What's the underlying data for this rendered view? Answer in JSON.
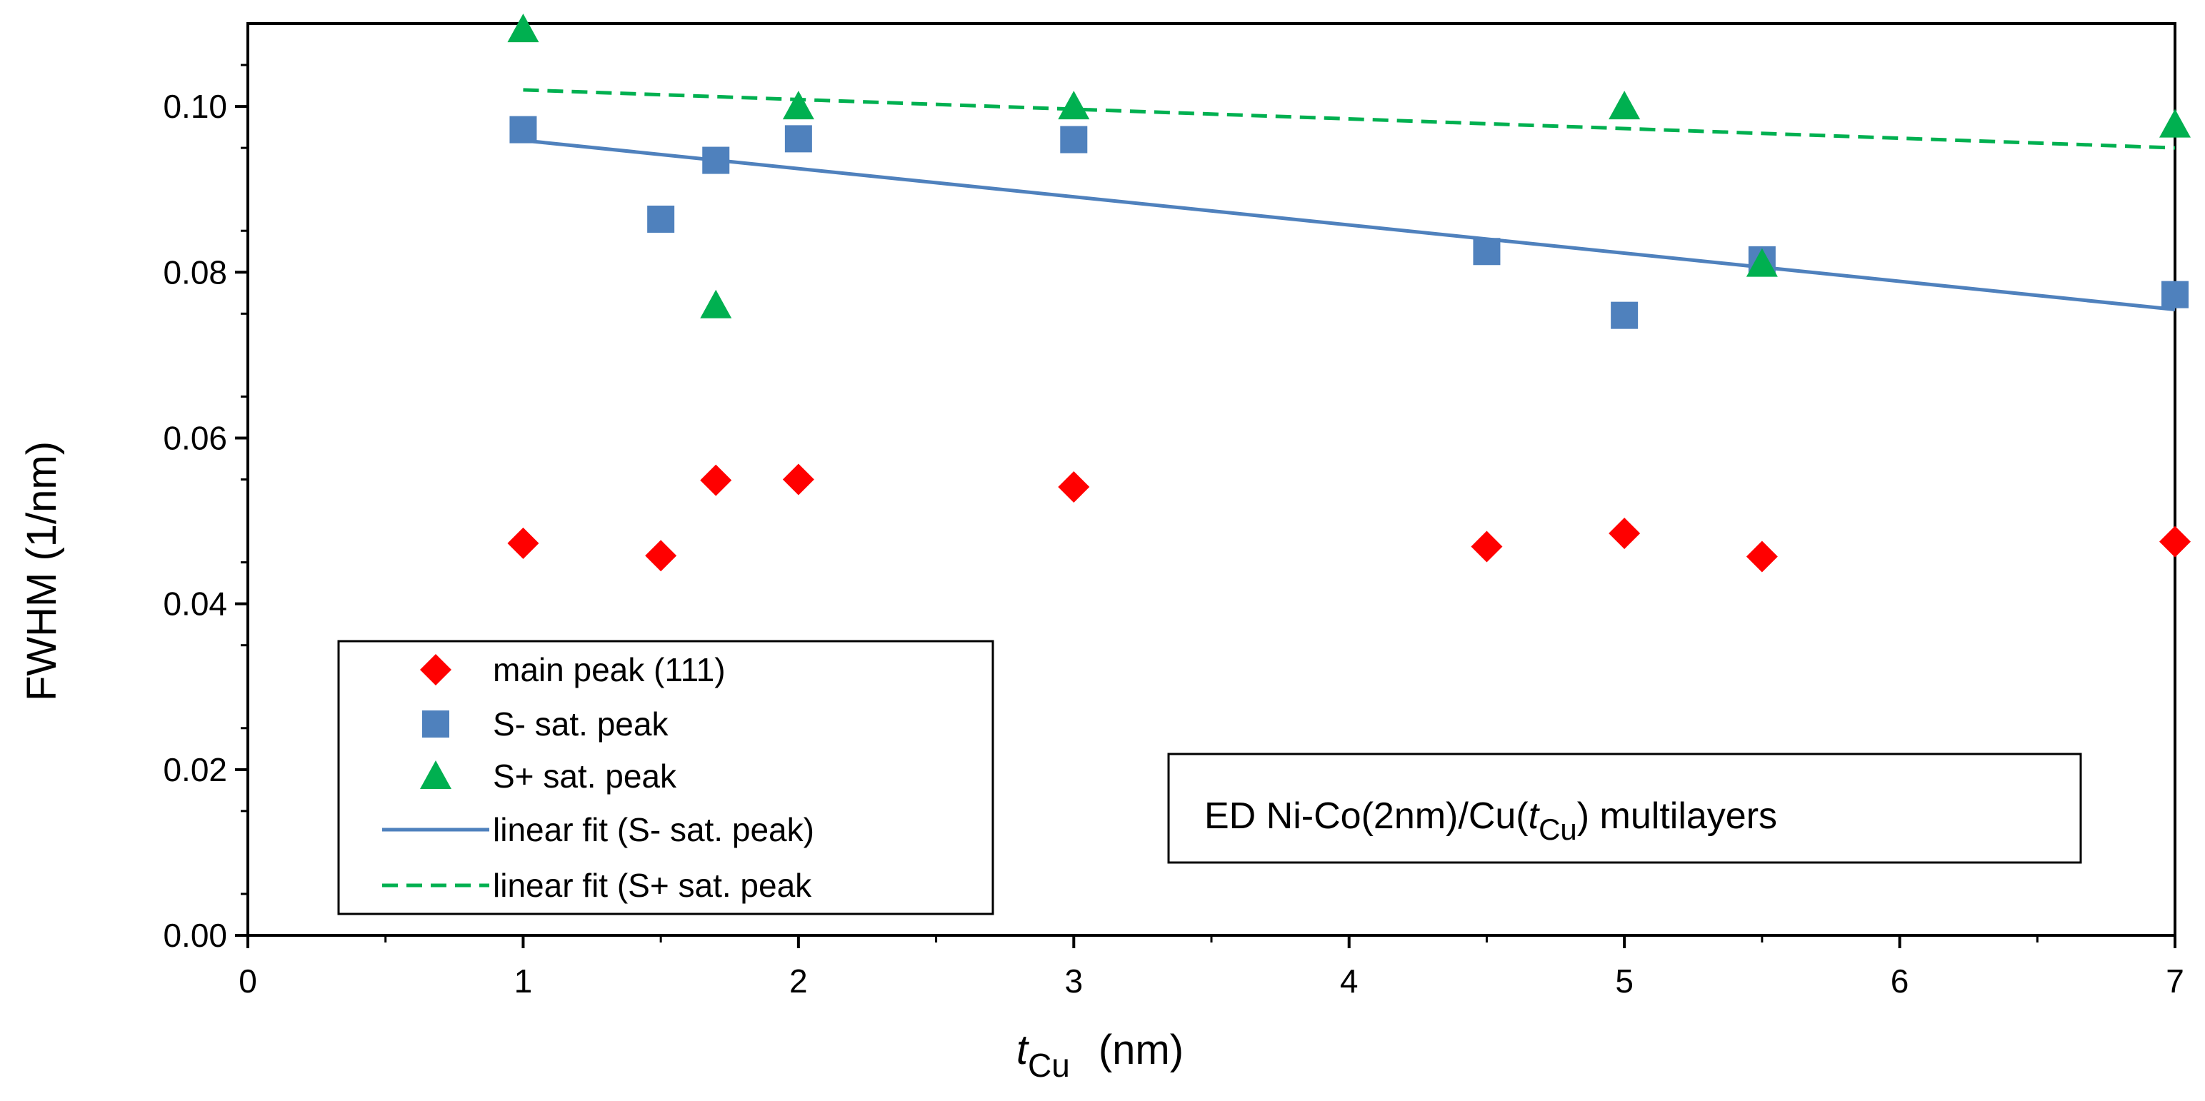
{
  "chart_data": {
    "type": "scatter",
    "title": "",
    "xlabel": {
      "main": "t",
      "sub": "Cu",
      "unit": "(nm)"
    },
    "ylabel": "FWHM   (1/nm)",
    "xlim": [
      0,
      7
    ],
    "ylim": [
      0,
      0.11
    ],
    "x_ticks": [
      0,
      1,
      2,
      3,
      4,
      5,
      6,
      7
    ],
    "x_tick_labels": [
      "0",
      "1",
      "2",
      "3",
      "4",
      "5",
      "6",
      "7"
    ],
    "y_ticks": [
      0,
      0.02,
      0.04,
      0.06,
      0.08,
      0.1
    ],
    "y_tick_labels": [
      "0.00",
      "0.02",
      "0.04",
      "0.06",
      "0.08",
      "0.10"
    ],
    "grid": false,
    "series": [
      {
        "name": "main peak (111)",
        "marker": "diamond",
        "color": "#ff0000",
        "x": [
          1,
          1.5,
          1.7,
          2,
          3,
          4.5,
          5,
          5.5,
          7
        ],
        "y": [
          0.0473,
          0.0458,
          0.0549,
          0.055,
          0.0541,
          0.0469,
          0.0485,
          0.0457,
          0.0475
        ]
      },
      {
        "name": "S- sat. peak",
        "marker": "square",
        "color": "#4f81bd",
        "x": [
          1,
          1.5,
          1.7,
          2,
          3,
          4.5,
          5,
          5.5,
          7
        ],
        "y": [
          0.0972,
          0.0864,
          0.0935,
          0.0961,
          0.096,
          0.0825,
          0.0748,
          0.0815,
          0.0773
        ]
      },
      {
        "name": "S+ sat. peak",
        "marker": "triangle",
        "color": "#00b050",
        "x": [
          1,
          1.7,
          2,
          3,
          5,
          5.5,
          7
        ],
        "y": [
          0.1093,
          0.076,
          0.1,
          0.1,
          0.1,
          0.081,
          0.0978
        ]
      }
    ],
    "fits": [
      {
        "name": "linear fit (S- sat. peak)",
        "style": "solid",
        "color": "#4f81bd",
        "x": [
          1,
          7
        ],
        "y": [
          0.0959,
          0.0755
        ]
      },
      {
        "name": "linear fit (S+ sat. peak",
        "style": "dashed",
        "color": "#00b050",
        "x": [
          1,
          7
        ],
        "y": [
          0.102,
          0.095
        ]
      }
    ],
    "legend": {
      "position": "bottom-left",
      "entries": [
        "main peak (111)",
        "S- sat. peak",
        "S+ sat. peak",
        "linear fit (S- sat. peak)",
        "linear fit (S+ sat. peak"
      ]
    },
    "annotation": {
      "prefix": "ED Ni-Co(2nm)/Cu(",
      "var": "t",
      "sub": "Cu",
      "suffix": ") multilayers"
    }
  }
}
